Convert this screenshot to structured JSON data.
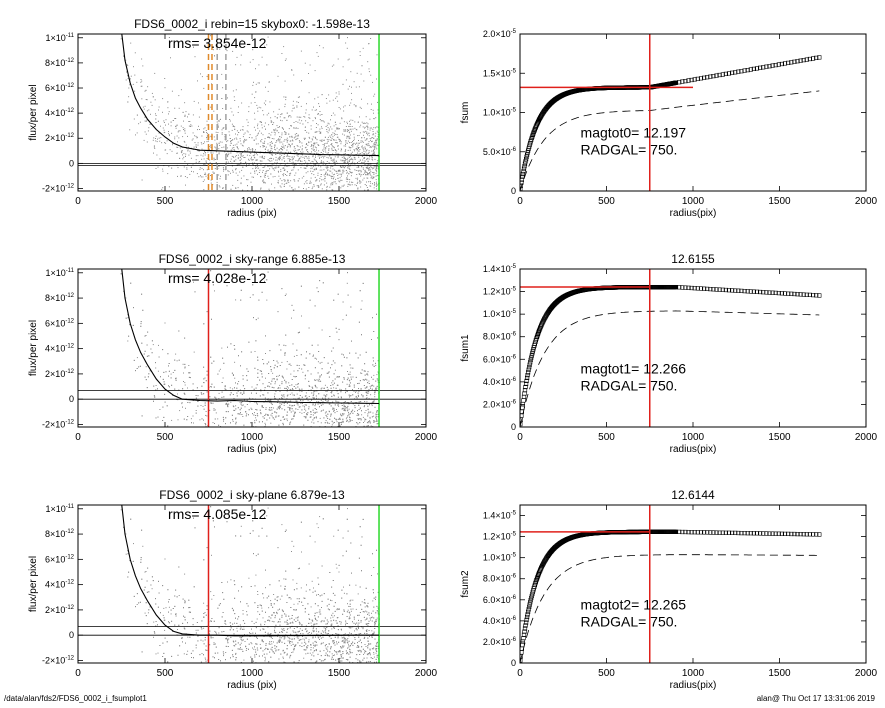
{
  "footer": {
    "path": "/data/alan/fds2/FDS6_0002_i_fsumplot1",
    "stamp": "alan@  Thu Oct 17 13:31:06 2019"
  },
  "colors": {
    "scatter": "#8c8c8c",
    "profile": "#000000",
    "marker_red": "#e0201b",
    "marker_green": "#2bd92b",
    "marker_orange": "#e08a2b",
    "grid_line": "#000000"
  },
  "chart_data": [
    {
      "id": "left-1",
      "type": "scatter",
      "title": "FDS6_0002_i rebin=15    skybox0: -1.598e-13",
      "annotation": "rms= 3.854e-12",
      "xlabel": "radius (pix)",
      "ylabel": "flux/per pixel",
      "xlim": [
        0,
        2000
      ],
      "ylim": [
        -2.2e-12,
        1.03e-11
      ],
      "xticks": [
        0,
        500,
        1000,
        1500,
        2000
      ],
      "xtick_labels": [
        "0",
        "500",
        "1000",
        "1500",
        "2000"
      ],
      "yticks": [
        -2e-12,
        0,
        2e-12,
        4e-12,
        6e-12,
        8e-12,
        1e-11
      ],
      "ytick_labels": [
        {
          "m": "-2×10",
          "e": "-12"
        },
        {
          "m": "0",
          "e": ""
        },
        {
          "m": "2×10",
          "e": "-12"
        },
        {
          "m": "4×10",
          "e": "-12"
        },
        {
          "m": "6×10",
          "e": "-12"
        },
        {
          "m": "8×10",
          "e": "-12"
        },
        {
          "m": "1×10",
          "e": "-11"
        }
      ],
      "profile": {
        "x": [
          250,
          270,
          300,
          330,
          360,
          400,
          450,
          500,
          550,
          600,
          700,
          800,
          900,
          1000,
          1100,
          1200,
          1300,
          1400,
          1500,
          1600,
          1730
        ],
        "y": [
          1.05e-11,
          8.2e-12,
          6.4e-12,
          5.2e-12,
          4.4e-12,
          3.5e-12,
          2.7e-12,
          2.1e-12,
          1.6e-12,
          1.3e-12,
          1.05e-12,
          1e-12,
          9.5e-13,
          9e-13,
          8.5e-13,
          8e-13,
          7.5e-13,
          7e-13,
          6.8e-13,
          6.5e-13,
          6.2e-13
        ]
      },
      "hlines": [
        0,
        -1.6e-13
      ],
      "vlines": [
        {
          "x": 750,
          "color": "orange",
          "style": "dashed"
        },
        {
          "x": 770,
          "color": "orange",
          "style": "dashed"
        },
        {
          "x": 800,
          "color": "gray",
          "style": "dashed"
        },
        {
          "x": 850,
          "color": "gray",
          "style": "dashed"
        },
        {
          "x": 1730,
          "color": "green",
          "style": "solid"
        }
      ]
    },
    {
      "id": "right-1",
      "type": "line",
      "title": "",
      "xlabel": "radius(pix)",
      "ylabel": "fsum",
      "xlim": [
        0,
        2000
      ],
      "ylim": [
        0,
        2e-05
      ],
      "xticks": [
        0,
        500,
        1000,
        1500,
        2000
      ],
      "xtick_labels": [
        "0",
        "500",
        "1000",
        "1500",
        "2000"
      ],
      "yticks": [
        0,
        5e-06,
        1e-05,
        1.5e-05,
        2e-05
      ],
      "ytick_labels": [
        {
          "m": "0",
          "e": ""
        },
        {
          "m": "5.0×10",
          "e": "-6"
        },
        {
          "m": "1.0×10",
          "e": "-5"
        },
        {
          "m": "1.5×10",
          "e": "-5"
        },
        {
          "m": "2.0×10",
          "e": "-5"
        }
      ],
      "text_lines": [
        "magtot0=  12.197",
        "RADGAL=    750."
      ],
      "curve": {
        "max": 1.32e-05,
        "scale": 95,
        "slope": 3.9e-09,
        "ref": 750
      },
      "dashed": {
        "max": 1.03e-05,
        "scale": 140,
        "slope": 2.5e-09,
        "ref": 750
      },
      "hline": {
        "y": 1.32e-05,
        "x_end": 1000
      },
      "vline": 750
    },
    {
      "id": "left-2",
      "type": "scatter",
      "title": "FDS6_0002_i sky-range  6.885e-13",
      "annotation": "rms= 4.028e-12",
      "xlabel": "radius (pix)",
      "ylabel": "flux/per pixel",
      "xlim": [
        0,
        2000
      ],
      "ylim": [
        -2.2e-12,
        1.03e-11
      ],
      "xticks": [
        0,
        500,
        1000,
        1500,
        2000
      ],
      "xtick_labels": [
        "0",
        "500",
        "1000",
        "1500",
        "2000"
      ],
      "yticks": [
        -2e-12,
        0,
        2e-12,
        4e-12,
        6e-12,
        8e-12,
        1e-11
      ],
      "ytick_labels": [
        {
          "m": "-2×10",
          "e": "-12"
        },
        {
          "m": "0",
          "e": ""
        },
        {
          "m": "2×10",
          "e": "-12"
        },
        {
          "m": "4×10",
          "e": "-12"
        },
        {
          "m": "6×10",
          "e": "-12"
        },
        {
          "m": "8×10",
          "e": "-12"
        },
        {
          "m": "1×10",
          "e": "-11"
        }
      ],
      "profile": {
        "x": [
          250,
          270,
          300,
          330,
          360,
          400,
          450,
          500,
          550,
          600,
          700,
          800,
          900,
          1000,
          1100,
          1200,
          1300,
          1400,
          1500,
          1600,
          1730
        ],
        "y": [
          1.05e-11,
          8e-12,
          6e-12,
          4.7e-12,
          3.7e-12,
          2.7e-12,
          1.6e-12,
          8e-13,
          3e-13,
          0.0,
          -1e-13,
          -1.5e-13,
          -1e-13,
          -1.8e-13,
          -2e-13,
          -2.3e-13,
          -2.6e-13,
          -2.8e-13,
          -3e-13,
          -3.2e-13,
          -3.4e-13
        ]
      },
      "hlines": [
        6.9e-13,
        0
      ],
      "vlines": [
        {
          "x": 750,
          "color": "red",
          "style": "solid"
        },
        {
          "x": 1730,
          "color": "green",
          "style": "solid"
        }
      ]
    },
    {
      "id": "right-2",
      "type": "line",
      "title": "12.6155",
      "xlabel": "radius(pix)",
      "ylabel": "fsum1",
      "xlim": [
        0,
        2000
      ],
      "ylim": [
        0,
        1.4e-05
      ],
      "xticks": [
        0,
        500,
        1000,
        1500,
        2000
      ],
      "xtick_labels": [
        "0",
        "500",
        "1000",
        "1500",
        "2000"
      ],
      "yticks": [
        0,
        2e-06,
        4e-06,
        6e-06,
        8e-06,
        1e-05,
        1.2e-05,
        1.4e-05
      ],
      "ytick_labels": [
        {
          "m": "0",
          "e": ""
        },
        {
          "m": "2.0×10",
          "e": "-6"
        },
        {
          "m": "4.0×10",
          "e": "-6"
        },
        {
          "m": "6.0×10",
          "e": "-6"
        },
        {
          "m": "8.0×10",
          "e": "-6"
        },
        {
          "m": "1.0×10",
          "e": "-5"
        },
        {
          "m": "1.2×10",
          "e": "-5"
        },
        {
          "m": "1.4×10",
          "e": "-5"
        }
      ],
      "text_lines": [
        "magtot1=  12.266",
        "RADGAL=    750."
      ],
      "curve": {
        "max": 1.24e-05,
        "scale": 95,
        "slope": -9e-10,
        "ref": 900
      },
      "dashed": {
        "max": 1.03e-05,
        "scale": 140,
        "slope": -4.5e-10,
        "ref": 900
      },
      "hline": {
        "y": 1.24e-05,
        "x_end": 750
      },
      "vline": 750
    },
    {
      "id": "left-3",
      "type": "scatter",
      "title": "FDS6_0002_i sky-plane  6.879e-13",
      "annotation": "rms= 4.085e-12",
      "xlabel": "radius (pix)",
      "ylabel": "flux/per pixel",
      "xlim": [
        0,
        2000
      ],
      "ylim": [
        -2.2e-12,
        1.03e-11
      ],
      "xticks": [
        0,
        500,
        1000,
        1500,
        2000
      ],
      "xtick_labels": [
        "0",
        "500",
        "1000",
        "1500",
        "2000"
      ],
      "yticks": [
        -2e-12,
        0,
        2e-12,
        4e-12,
        6e-12,
        8e-12,
        1e-11
      ],
      "ytick_labels": [
        {
          "m": "-2×10",
          "e": "-12"
        },
        {
          "m": "0",
          "e": ""
        },
        {
          "m": "2×10",
          "e": "-12"
        },
        {
          "m": "4×10",
          "e": "-12"
        },
        {
          "m": "6×10",
          "e": "-12"
        },
        {
          "m": "8×10",
          "e": "-12"
        },
        {
          "m": "1×10",
          "e": "-11"
        }
      ],
      "profile": {
        "x": [
          250,
          270,
          300,
          330,
          360,
          400,
          450,
          500,
          550,
          600,
          700,
          800,
          900,
          1000,
          1100,
          1200,
          1300,
          1400,
          1500,
          1600,
          1730
        ],
        "y": [
          1.05e-11,
          8e-12,
          6e-12,
          4.7e-12,
          3.7e-12,
          2.7e-12,
          1.6e-12,
          8e-13,
          3e-13,
          1e-13,
          0.0,
          0.0,
          -5e-14,
          -5e-14,
          -5e-14,
          -3e-14,
          -3e-14,
          -2e-14,
          -1e-14,
          0.0,
          0.0
        ]
      },
      "hlines": [
        6.9e-13,
        0
      ],
      "vlines": [
        {
          "x": 750,
          "color": "red",
          "style": "solid"
        },
        {
          "x": 1730,
          "color": "green",
          "style": "solid"
        }
      ]
    },
    {
      "id": "right-3",
      "type": "line",
      "title": "12.6144",
      "xlabel": "radius(pix)",
      "ylabel": "fsum2",
      "xlim": [
        0,
        2000
      ],
      "ylim": [
        0,
        1.5e-05
      ],
      "xticks": [
        0,
        500,
        1000,
        1500,
        2000
      ],
      "xtick_labels": [
        "0",
        "500",
        "1000",
        "1500",
        "2000"
      ],
      "yticks": [
        0,
        2e-06,
        4e-06,
        6e-06,
        8e-06,
        1e-05,
        1.2e-05,
        1.4e-05
      ],
      "ytick_labels": [
        {
          "m": "0",
          "e": ""
        },
        {
          "m": "2.0×10",
          "e": "-6"
        },
        {
          "m": "4.0×10",
          "e": "-6"
        },
        {
          "m": "6.0×10",
          "e": "-6"
        },
        {
          "m": "8.0×10",
          "e": "-6"
        },
        {
          "m": "1.0×10",
          "e": "-5"
        },
        {
          "m": "1.2×10",
          "e": "-5"
        },
        {
          "m": "1.4×10",
          "e": "-5"
        }
      ],
      "text_lines": [
        "magtot2=  12.265",
        "RADGAL=    750."
      ],
      "curve": {
        "max": 1.245e-05,
        "scale": 95,
        "slope": -3e-10,
        "ref": 900
      },
      "dashed": {
        "max": 1.03e-05,
        "scale": 140,
        "slope": -1e-10,
        "ref": 900
      },
      "hline": {
        "y": 1.245e-05,
        "x_end": 750
      },
      "vline": 750
    }
  ]
}
